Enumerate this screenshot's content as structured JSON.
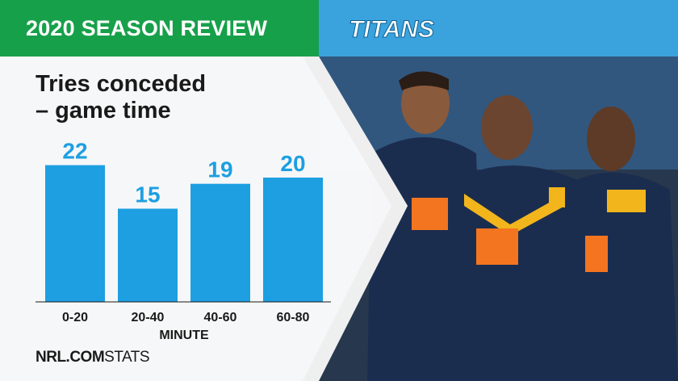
{
  "header": {
    "title": "2020 SEASON REVIEW",
    "logo_text": "TITANS"
  },
  "colors": {
    "header_green": "#17a04a",
    "header_blue": "#3aa3dd",
    "bar_blue": "#1d9fe1",
    "navy_jersey": "#1b2d4f",
    "accent_orange": "#f3751f",
    "accent_gold": "#f2b51c"
  },
  "source": {
    "brand": "NRL.COM",
    "label": "STATS"
  },
  "chart_data": {
    "type": "bar",
    "title": "Tries conceded – game time",
    "title_lines": [
      "Tries conceded",
      "– game time"
    ],
    "categories": [
      "0-20",
      "20-40",
      "40-60",
      "60-80"
    ],
    "values": [
      22,
      15,
      19,
      20
    ],
    "xlabel": "MINUTE",
    "ylabel": "",
    "ylim": [
      0,
      25
    ],
    "grid": false,
    "legend": "none"
  }
}
